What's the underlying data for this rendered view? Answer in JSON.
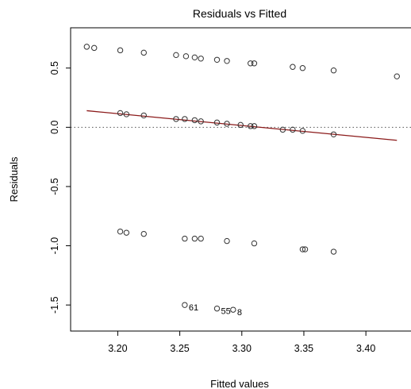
{
  "chart_data": {
    "type": "scatter",
    "title": "Residuals vs Fitted",
    "xlabel": "Fitted values",
    "ylabel": "Residuals",
    "xlim": [
      3.162,
      3.437
    ],
    "ylim": [
      -1.72,
      0.84
    ],
    "xticks": [
      3.2,
      3.25,
      3.3,
      3.35,
      3.4
    ],
    "xtick_labels": [
      "3.20",
      "3.25",
      "3.30",
      "3.35",
      "3.40"
    ],
    "yticks": [
      0.5,
      0.0,
      -0.5,
      -1.0,
      -1.5
    ],
    "ytick_labels": [
      "0.5",
      "0.0",
      "-0.5",
      "-1.0",
      "-1.5"
    ],
    "zero_line": 0,
    "trend_line": {
      "x": [
        3.175,
        3.425
      ],
      "y": [
        0.14,
        -0.11
      ],
      "color": "#8b1a1a"
    },
    "point_color": "#333333",
    "points": [
      {
        "x": 3.175,
        "y": 0.68
      },
      {
        "x": 3.181,
        "y": 0.67
      },
      {
        "x": 3.202,
        "y": 0.65
      },
      {
        "x": 3.221,
        "y": 0.63
      },
      {
        "x": 3.247,
        "y": 0.61
      },
      {
        "x": 3.255,
        "y": 0.6
      },
      {
        "x": 3.262,
        "y": 0.59
      },
      {
        "x": 3.267,
        "y": 0.58
      },
      {
        "x": 3.28,
        "y": 0.57
      },
      {
        "x": 3.288,
        "y": 0.56
      },
      {
        "x": 3.307,
        "y": 0.54
      },
      {
        "x": 3.31,
        "y": 0.54
      },
      {
        "x": 3.341,
        "y": 0.51
      },
      {
        "x": 3.349,
        "y": 0.5
      },
      {
        "x": 3.374,
        "y": 0.48
      },
      {
        "x": 3.425,
        "y": 0.43
      },
      {
        "x": 3.202,
        "y": 0.12
      },
      {
        "x": 3.207,
        "y": 0.11
      },
      {
        "x": 3.221,
        "y": 0.1
      },
      {
        "x": 3.247,
        "y": 0.07
      },
      {
        "x": 3.254,
        "y": 0.07
      },
      {
        "x": 3.262,
        "y": 0.06
      },
      {
        "x": 3.267,
        "y": 0.05
      },
      {
        "x": 3.28,
        "y": 0.04
      },
      {
        "x": 3.288,
        "y": 0.03
      },
      {
        "x": 3.299,
        "y": 0.02
      },
      {
        "x": 3.307,
        "y": 0.01
      },
      {
        "x": 3.31,
        "y": 0.01
      },
      {
        "x": 3.333,
        "y": -0.02
      },
      {
        "x": 3.341,
        "y": -0.02
      },
      {
        "x": 3.349,
        "y": -0.03
      },
      {
        "x": 3.374,
        "y": -0.06
      },
      {
        "x": 3.202,
        "y": -0.88
      },
      {
        "x": 3.207,
        "y": -0.89
      },
      {
        "x": 3.221,
        "y": -0.9
      },
      {
        "x": 3.254,
        "y": -0.94
      },
      {
        "x": 3.262,
        "y": -0.94
      },
      {
        "x": 3.267,
        "y": -0.94
      },
      {
        "x": 3.288,
        "y": -0.96
      },
      {
        "x": 3.31,
        "y": -0.98
      },
      {
        "x": 3.349,
        "y": -1.03
      },
      {
        "x": 3.351,
        "y": -1.03
      },
      {
        "x": 3.374,
        "y": -1.05
      },
      {
        "x": 3.254,
        "y": -1.5,
        "label": "61"
      },
      {
        "x": 3.28,
        "y": -1.53,
        "label": "55"
      },
      {
        "x": 3.293,
        "y": -1.54,
        "label": "8"
      }
    ]
  }
}
